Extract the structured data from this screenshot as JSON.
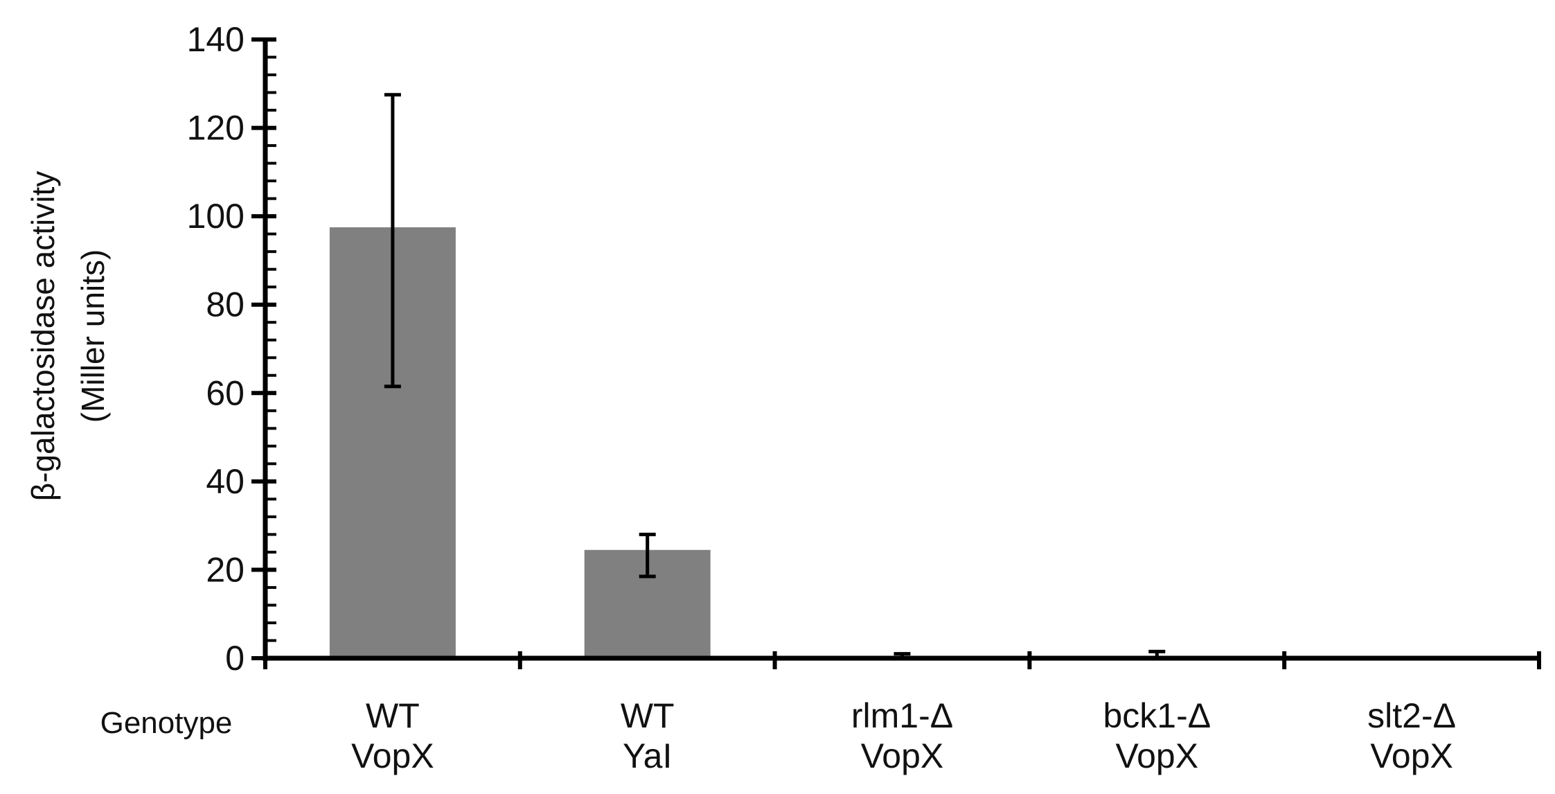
{
  "chart_data": {
    "type": "bar",
    "title": "",
    "xlabel": "Genotype",
    "ylabel_lines": [
      "β-galactosidase activity",
      "(Miller units)"
    ],
    "categories": [
      [
        "WT",
        "VopX"
      ],
      [
        "WT",
        "YaI"
      ],
      [
        "rlm1-Δ",
        "VopX"
      ],
      [
        "bck1-Δ",
        "VopX"
      ],
      [
        "slt2-Δ",
        "VopX"
      ]
    ],
    "series": [
      {
        "values": [
          97.5,
          24.5,
          0.5,
          0.5,
          0
        ],
        "error_low": [
          61.5,
          18.5,
          0,
          0,
          0
        ],
        "error_high": [
          127.5,
          28,
          1,
          1.5,
          0
        ]
      }
    ],
    "ylim": [
      0,
      140
    ],
    "yticks": [
      0,
      20,
      40,
      60,
      80,
      100,
      120,
      140
    ],
    "ytick_labels": [
      "0",
      "20",
      "40",
      "60",
      "80",
      "100",
      "120",
      "140"
    ],
    "grid": false,
    "legend": "none",
    "colors": {
      "bar": "#808080",
      "axis": "#000000",
      "text": "#111111"
    }
  }
}
